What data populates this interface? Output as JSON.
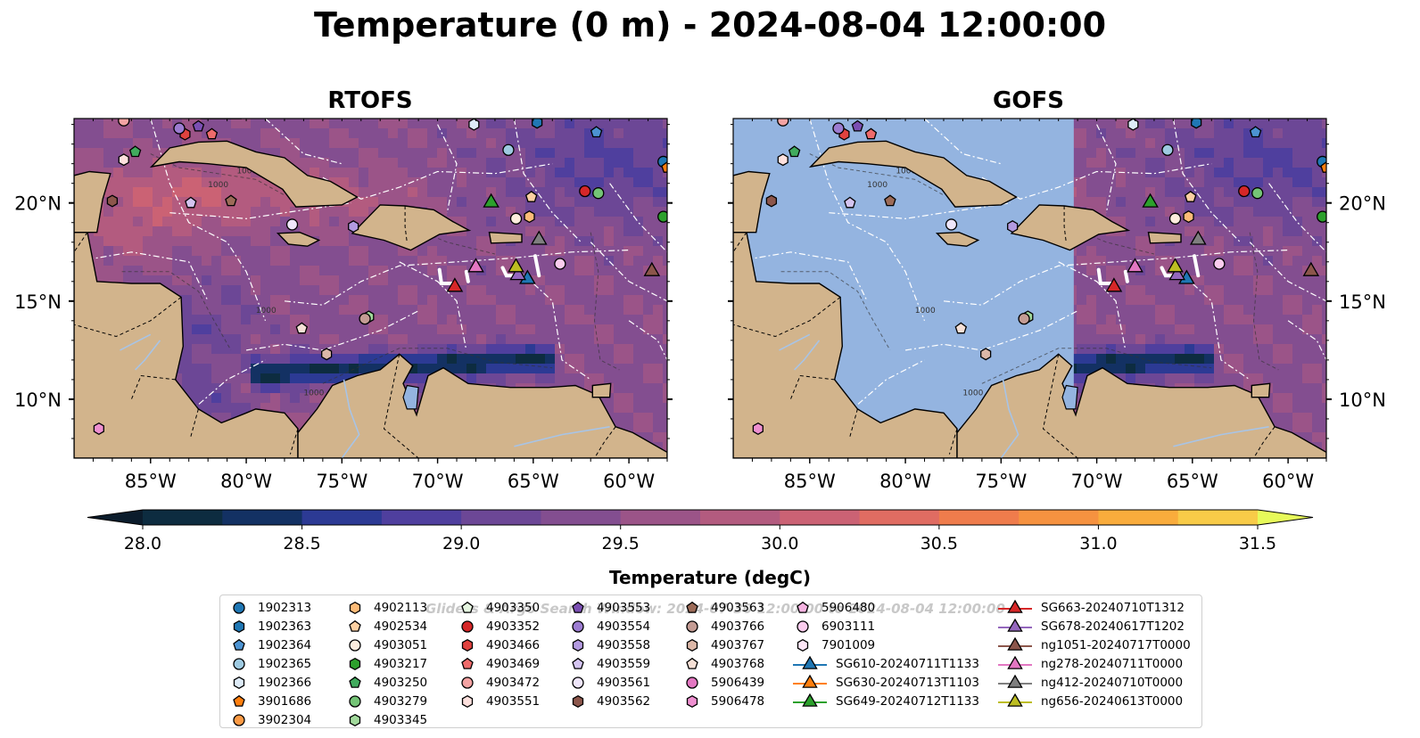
{
  "title": "Temperature (0 m) - 2024-08-04 12:00:00",
  "panels": [
    {
      "title": "RTOFS",
      "has_mask": false
    },
    {
      "title": "GOFS",
      "has_mask": true
    }
  ],
  "map": {
    "lon_ticks": [
      "85°W",
      "80°W",
      "75°W",
      "70°W",
      "65°W",
      "60°W"
    ],
    "lat_ticks": [
      "20°N",
      "15°N",
      "10°N"
    ],
    "contour_labels": [
      "1000",
      "1000",
      "1000",
      "1000"
    ],
    "colors": {
      "land": "#d2b48c",
      "masked_ocean": "#94b4e0",
      "eez_lines": "#ffffff",
      "coastline": "#000000"
    }
  },
  "colorbar": {
    "label": "Temperature (degC)",
    "ticks": [
      "28.0",
      "28.5",
      "29.0",
      "29.5",
      "30.0",
      "30.5",
      "31.0",
      "31.5"
    ],
    "min": 28.0,
    "max": 31.5,
    "step": 0.25,
    "colors": [
      "#0d2c40",
      "#133163",
      "#2c3a94",
      "#4f3f9e",
      "#6c4796",
      "#834e90",
      "#9b5488",
      "#b35b7f",
      "#cb6274",
      "#e06c62",
      "#ef7c4c",
      "#f69240",
      "#f9ac3c",
      "#f8cb48"
    ],
    "under": "#0b1c2c",
    "over": "#e7fa5a"
  },
  "legend": {
    "watermark": "Gliders & Argo Search Window: 2024-07-30 12:00:00 to 2024-08-04 12:00:00",
    "columns": [
      [
        {
          "label": "1902313",
          "marker": "circle",
          "color": "#1f77b4"
        },
        {
          "label": "1902363",
          "marker": "hexagon",
          "color": "#1f77b4"
        },
        {
          "label": "1902364",
          "marker": "pentagon",
          "color": "#4c93d2"
        },
        {
          "label": "1902365",
          "marker": "circle",
          "color": "#9ecae1"
        },
        {
          "label": "1902366",
          "marker": "hexagon",
          "color": "#deebf7"
        },
        {
          "label": "3901686",
          "marker": "pentagon",
          "color": "#ff7f0e"
        },
        {
          "label": "3902304",
          "marker": "circle",
          "color": "#fd9a44"
        }
      ],
      [
        {
          "label": "4902113",
          "marker": "hexagon",
          "color": "#fdbb77"
        },
        {
          "label": "4902534",
          "marker": "pentagon",
          "color": "#fdd0a2"
        },
        {
          "label": "4903051",
          "marker": "circle",
          "color": "#feedde"
        },
        {
          "label": "4903217",
          "marker": "hexagon",
          "color": "#2ca02c"
        },
        {
          "label": "4903250",
          "marker": "pentagon",
          "color": "#41ab5d"
        },
        {
          "label": "4903279",
          "marker": "circle",
          "color": "#74c476"
        },
        {
          "label": "4903345",
          "marker": "hexagon",
          "color": "#a1d99b"
        }
      ],
      [
        {
          "label": "4903350",
          "marker": "pentagon",
          "color": "#e5f5e0"
        },
        {
          "label": "4903352",
          "marker": "circle",
          "color": "#d62728"
        },
        {
          "label": "4903466",
          "marker": "hexagon",
          "color": "#e0423f"
        },
        {
          "label": "4903469",
          "marker": "pentagon",
          "color": "#ef6b6b"
        },
        {
          "label": "4903472",
          "marker": "circle",
          "color": "#f4a3a3"
        },
        {
          "label": "4903551",
          "marker": "hexagon",
          "color": "#fde0dd"
        }
      ],
      [
        {
          "label": "4903553",
          "marker": "pentagon",
          "color": "#7b4fb3"
        },
        {
          "label": "4903554",
          "marker": "circle",
          "color": "#9c7cd1"
        },
        {
          "label": "4903558",
          "marker": "hexagon",
          "color": "#b39ae0"
        },
        {
          "label": "4903559",
          "marker": "pentagon",
          "color": "#d4c4f0"
        },
        {
          "label": "4903561",
          "marker": "circle",
          "color": "#efe6fb"
        },
        {
          "label": "4903562",
          "marker": "hexagon",
          "color": "#8c564b"
        }
      ],
      [
        {
          "label": "4903563",
          "marker": "pentagon",
          "color": "#9c6b58"
        },
        {
          "label": "4903766",
          "marker": "circle",
          "color": "#c49c94"
        },
        {
          "label": "4903767",
          "marker": "hexagon",
          "color": "#ddb8a8"
        },
        {
          "label": "4903768",
          "marker": "pentagon",
          "color": "#f6e0d6"
        },
        {
          "label": "5906439",
          "marker": "circle",
          "color": "#e377c2"
        },
        {
          "label": "5906478",
          "marker": "hexagon",
          "color": "#ee8fd0"
        }
      ],
      [
        {
          "label": "5906480",
          "marker": "pentagon",
          "color": "#f5b3e1"
        },
        {
          "label": "6903111",
          "marker": "circle",
          "color": "#fbcdee"
        },
        {
          "label": "7901009",
          "marker": "hexagon",
          "color": "#fde6f6"
        },
        {
          "label": "SG610-20240711T1133",
          "marker": "triangle-line",
          "color": "#1f77b4"
        },
        {
          "label": "SG630-20240713T1103",
          "marker": "triangle-line",
          "color": "#ff7f0e"
        },
        {
          "label": "SG649-20240712T1133",
          "marker": "triangle-line",
          "color": "#2ca02c"
        }
      ],
      [
        {
          "label": "SG663-20240710T1312",
          "marker": "triangle-line",
          "color": "#d62728"
        },
        {
          "label": "SG678-20240617T1202",
          "marker": "triangle-line",
          "color": "#9467bd"
        },
        {
          "label": "ng1051-20240717T0000",
          "marker": "triangle-line",
          "color": "#8c564b"
        },
        {
          "label": "ng278-20240711T0000",
          "marker": "triangle-line",
          "color": "#e377c2"
        },
        {
          "label": "ng412-20240710T0000",
          "marker": "triangle-line",
          "color": "#7f7f7f"
        },
        {
          "label": "ng656-20240613T0000",
          "marker": "triangle-line",
          "color": "#bcbd22"
        }
      ]
    ]
  },
  "observations": [
    {
      "marker": "circle",
      "color": "#1f77b4",
      "lon": -58.2,
      "lat": 22.1
    },
    {
      "marker": "hexagon",
      "color": "#1f77b4",
      "lon": -64.8,
      "lat": 24.1
    },
    {
      "marker": "pentagon",
      "color": "#4c93d2",
      "lon": -61.7,
      "lat": 23.6
    },
    {
      "marker": "circle",
      "color": "#9ecae1",
      "lon": -66.3,
      "lat": 22.7
    },
    {
      "marker": "hexagon",
      "color": "#deebf7",
      "lon": -68.1,
      "lat": 24.0
    },
    {
      "marker": "pentagon",
      "color": "#ff7f0e",
      "lon": -58.0,
      "lat": 21.8
    },
    {
      "marker": "circle",
      "color": "#2ca02c",
      "lon": -58.2,
      "lat": 19.3
    },
    {
      "marker": "hexagon",
      "color": "#fdbb77",
      "lon": -65.2,
      "lat": 19.3
    },
    {
      "marker": "pentagon",
      "color": "#fdd0a2",
      "lon": -65.1,
      "lat": 20.3
    },
    {
      "marker": "circle",
      "color": "#feedde",
      "lon": -65.9,
      "lat": 19.2
    },
    {
      "marker": "pentagon",
      "color": "#41ab5d",
      "lon": -85.8,
      "lat": 22.6
    },
    {
      "marker": "circle",
      "color": "#74c476",
      "lon": -61.6,
      "lat": 20.5
    },
    {
      "marker": "hexagon",
      "color": "#a1d99b",
      "lon": -73.6,
      "lat": 14.2
    },
    {
      "marker": "circle",
      "color": "#d62728",
      "lon": -62.3,
      "lat": 20.6
    },
    {
      "marker": "hexagon",
      "color": "#e0423f",
      "lon": -83.2,
      "lat": 23.5
    },
    {
      "marker": "pentagon",
      "color": "#ef6b6b",
      "lon": -81.8,
      "lat": 23.5
    },
    {
      "marker": "circle",
      "color": "#f4a3a3",
      "lon": -86.4,
      "lat": 24.2
    },
    {
      "marker": "hexagon",
      "color": "#fde0dd",
      "lon": -86.4,
      "lat": 22.2
    },
    {
      "marker": "pentagon",
      "color": "#7b4fb3",
      "lon": -82.5,
      "lat": 23.9
    },
    {
      "marker": "circle",
      "color": "#9c7cd1",
      "lon": -83.5,
      "lat": 23.8
    },
    {
      "marker": "hexagon",
      "color": "#b39ae0",
      "lon": -74.4,
      "lat": 18.8
    },
    {
      "marker": "pentagon",
      "color": "#d4c4f0",
      "lon": -82.9,
      "lat": 20.0
    },
    {
      "marker": "circle",
      "color": "#efe6fb",
      "lon": -77.6,
      "lat": 18.9
    },
    {
      "marker": "hexagon",
      "color": "#8c564b",
      "lon": -87.0,
      "lat": 20.1
    },
    {
      "marker": "pentagon",
      "color": "#9c6b58",
      "lon": -80.8,
      "lat": 20.1
    },
    {
      "marker": "circle",
      "color": "#c49c94",
      "lon": -73.8,
      "lat": 14.1
    },
    {
      "marker": "hexagon",
      "color": "#ddb8a8",
      "lon": -75.8,
      "lat": 12.3
    },
    {
      "marker": "pentagon",
      "color": "#f6e0d6",
      "lon": -77.1,
      "lat": 13.6
    },
    {
      "marker": "hexagon",
      "color": "#ee8fd0",
      "lon": -87.7,
      "lat": 8.5
    },
    {
      "marker": "circle",
      "color": "#fbcdee",
      "lon": -63.6,
      "lat": 16.9
    },
    {
      "marker": "triangle",
      "color": "#1f77b4",
      "lon": -65.3,
      "lat": 16.2
    },
    {
      "marker": "triangle",
      "color": "#2ca02c",
      "lon": -67.2,
      "lat": 20.1
    },
    {
      "marker": "triangle",
      "color": "#d62728",
      "lon": -69.1,
      "lat": 15.8
    },
    {
      "marker": "triangle",
      "color": "#9467bd",
      "lon": -65.8,
      "lat": 16.4
    },
    {
      "marker": "triangle",
      "color": "#8c564b",
      "lon": -58.8,
      "lat": 16.6
    },
    {
      "marker": "triangle",
      "color": "#e377c2",
      "lon": -68.0,
      "lat": 16.8
    },
    {
      "marker": "triangle",
      "color": "#7f7f7f",
      "lon": -64.7,
      "lat": 18.2
    },
    {
      "marker": "triangle",
      "color": "#bcbd22",
      "lon": -65.9,
      "lat": 16.8
    }
  ]
}
